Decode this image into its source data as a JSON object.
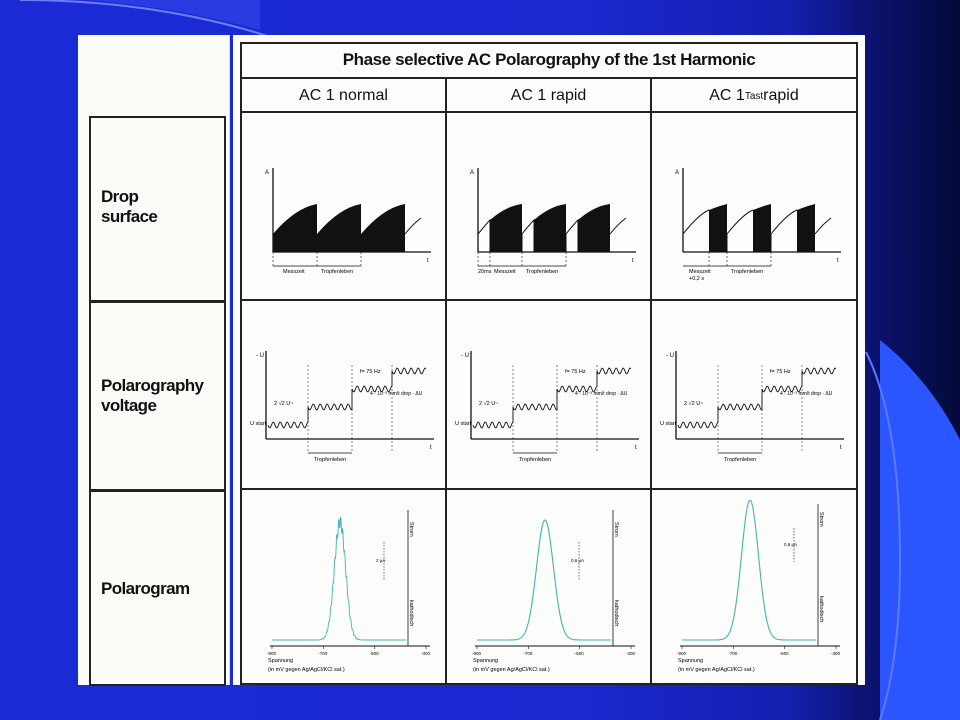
{
  "title": "Phase selective AC Polarography of the 1st Harmonic",
  "columns": [
    {
      "main": "AC 1 normal",
      "sub": "",
      "tail": ""
    },
    {
      "main": "AC 1 rapid",
      "sub": "",
      "tail": ""
    },
    {
      "main": "AC 1 ",
      "sub": "Tast",
      "tail": " rapid"
    }
  ],
  "rows": [
    {
      "line1": "Drop",
      "line2": "surface"
    },
    {
      "line1": "Polarography",
      "line2": "voltage"
    },
    {
      "line1": "Polarogram",
      "line2": ""
    }
  ],
  "drop": {
    "axis_y": "A",
    "axis_x": "t",
    "messzeit": "Messzeit",
    "tropfenleben": "Tropfenleben",
    "twenty_ms": "20ms",
    "messzeit_sub": "+0,2 s"
  },
  "voltage": {
    "axis_y": "- U",
    "axis_x": "t",
    "freq": "f= 75 Hz",
    "amp": "2 √2 U~",
    "step": "4 · 10⁻³ mm/t drop · ΔU",
    "ustart": "U start",
    "tropfenleben": "Tropfenleben"
  },
  "polarogram": {
    "ticks": [
      "-900",
      "-700",
      "-500",
      "-300"
    ],
    "xlabel": "Spannung",
    "xunit": "(in mV gegen Ag/AgCl/KCl sat.)",
    "strom": "Strom",
    "kathodisch": "kathodisch",
    "scales": [
      "2 µA",
      "0,6 µA",
      "0,6 µA"
    ]
  },
  "colors": {
    "trace": "#3fb5b0",
    "ink": "#111111",
    "slide_bg": "#1a2bd6"
  }
}
